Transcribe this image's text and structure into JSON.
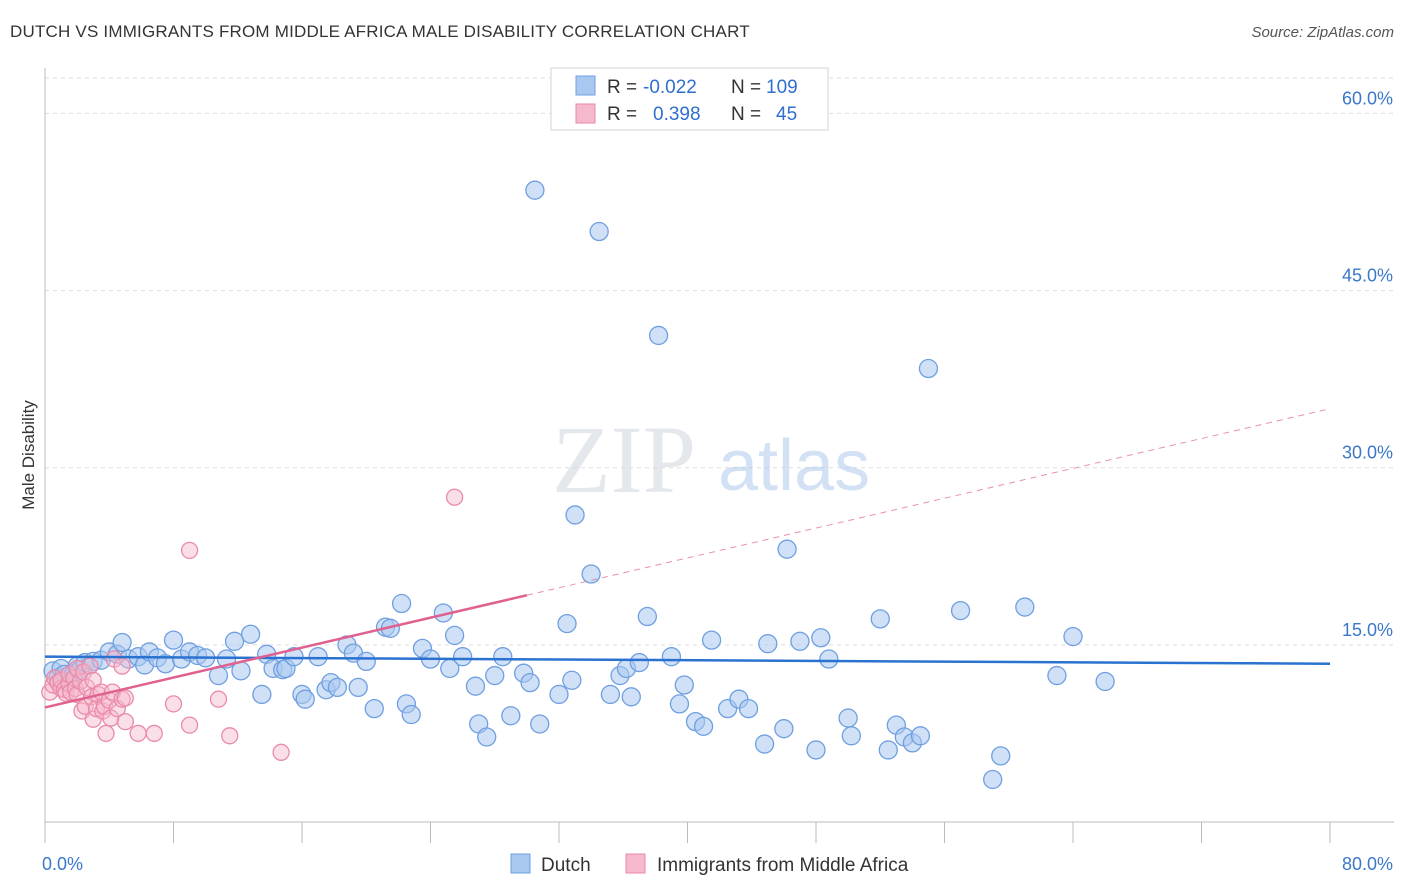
{
  "header": {
    "title": "DUTCH VS IMMIGRANTS FROM MIDDLE AFRICA MALE DISABILITY CORRELATION CHART",
    "source": "Source: ZipAtlas.com"
  },
  "watermark": {
    "zip": "ZIP",
    "atlas": "atlas"
  },
  "legend_box": {
    "rows": [
      {
        "r_label": "R =",
        "r_value": "-0.022",
        "n_label": "N =",
        "n_value": "109"
      },
      {
        "r_label": "R =",
        "r_value": "0.398",
        "n_label": "N =",
        "n_value": "45"
      }
    ]
  },
  "colors": {
    "blue_fill": "#a9c8f0",
    "blue_stroke": "#6f9fe0",
    "blue_line": "#2a72d0",
    "pink_fill": "#f6b8cc",
    "pink_stroke": "#e98aa8",
    "pink_line": "#e0618f",
    "tick_text": "#3b78c9",
    "grid": "#dddddd"
  },
  "chart_data": {
    "type": "scatter",
    "title": "DUTCH VS IMMIGRANTS FROM MIDDLE AFRICA MALE DISABILITY CORRELATION CHART",
    "xlabel": "",
    "ylabel": "Male Disability",
    "xlim": [
      0,
      80
    ],
    "ylim": [
      0,
      63
    ],
    "x_tick_labels": [
      "0.0%",
      "80.0%"
    ],
    "y_ticks": [
      15,
      30,
      45,
      60
    ],
    "y_tick_labels": [
      "15.0%",
      "30.0%",
      "45.0%",
      "60.0%"
    ],
    "grid": true,
    "legend_position": "top-center",
    "series": [
      {
        "name": "Dutch",
        "color": "#a9c8f0",
        "R": -0.022,
        "N": 109,
        "trend": {
          "x0": 0,
          "y0": 14.0,
          "x1": 80,
          "y1": 13.4
        },
        "points": [
          [
            0.5,
            12.8
          ],
          [
            0.8,
            12.2
          ],
          [
            1.0,
            13.0
          ],
          [
            1.2,
            12.5
          ],
          [
            1.5,
            11.8
          ],
          [
            1.8,
            12.6
          ],
          [
            2.0,
            13.2
          ],
          [
            2.2,
            12.9
          ],
          [
            2.5,
            13.5
          ],
          [
            3.0,
            13.6
          ],
          [
            3.5,
            13.7
          ],
          [
            4.0,
            14.4
          ],
          [
            4.5,
            14.2
          ],
          [
            4.8,
            15.2
          ],
          [
            5.2,
            13.8
          ],
          [
            5.8,
            14.0
          ],
          [
            6.2,
            13.3
          ],
          [
            6.5,
            14.4
          ],
          [
            7.0,
            13.9
          ],
          [
            7.5,
            13.4
          ],
          [
            8.0,
            15.4
          ],
          [
            8.5,
            13.8
          ],
          [
            9.0,
            14.4
          ],
          [
            9.5,
            14.1
          ],
          [
            10.0,
            13.9
          ],
          [
            10.8,
            12.4
          ],
          [
            11.3,
            13.8
          ],
          [
            11.8,
            15.3
          ],
          [
            12.2,
            12.8
          ],
          [
            12.8,
            15.9
          ],
          [
            13.5,
            10.8
          ],
          [
            13.8,
            14.2
          ],
          [
            14.2,
            13.0
          ],
          [
            14.8,
            12.9
          ],
          [
            15.0,
            13.0
          ],
          [
            15.5,
            14.0
          ],
          [
            16.0,
            10.8
          ],
          [
            16.2,
            10.4
          ],
          [
            17.0,
            14.0
          ],
          [
            17.5,
            11.2
          ],
          [
            17.8,
            11.8
          ],
          [
            18.2,
            11.4
          ],
          [
            18.8,
            15.0
          ],
          [
            19.2,
            14.3
          ],
          [
            19.5,
            11.4
          ],
          [
            20.0,
            13.6
          ],
          [
            20.5,
            9.6
          ],
          [
            21.2,
            16.5
          ],
          [
            21.5,
            16.4
          ],
          [
            22.2,
            18.5
          ],
          [
            22.5,
            10.0
          ],
          [
            22.8,
            9.1
          ],
          [
            23.5,
            14.7
          ],
          [
            24.0,
            13.8
          ],
          [
            24.8,
            17.7
          ],
          [
            25.2,
            13.0
          ],
          [
            25.5,
            15.8
          ],
          [
            26.0,
            14.0
          ],
          [
            26.8,
            11.5
          ],
          [
            27.0,
            8.3
          ],
          [
            27.5,
            7.2
          ],
          [
            28.0,
            12.4
          ],
          [
            28.5,
            14.0
          ],
          [
            29.0,
            9.0
          ],
          [
            29.8,
            12.6
          ],
          [
            30.2,
            11.8
          ],
          [
            30.8,
            8.3
          ],
          [
            30.5,
            53.5
          ],
          [
            32.0,
            10.8
          ],
          [
            32.5,
            16.8
          ],
          [
            32.8,
            12.0
          ],
          [
            33.0,
            26.0
          ],
          [
            34.0,
            21.0
          ],
          [
            34.5,
            50.0
          ],
          [
            35.2,
            10.8
          ],
          [
            35.8,
            12.4
          ],
          [
            36.2,
            13.0
          ],
          [
            36.5,
            10.6
          ],
          [
            37.0,
            13.5
          ],
          [
            37.5,
            17.4
          ],
          [
            38.2,
            41.2
          ],
          [
            39.0,
            14.0
          ],
          [
            39.5,
            10.0
          ],
          [
            39.8,
            11.6
          ],
          [
            40.5,
            8.5
          ],
          [
            41.0,
            8.1
          ],
          [
            41.5,
            15.4
          ],
          [
            42.5,
            9.6
          ],
          [
            43.2,
            10.4
          ],
          [
            43.8,
            9.6
          ],
          [
            44.8,
            6.6
          ],
          [
            45.0,
            15.1
          ],
          [
            46.0,
            7.9
          ],
          [
            46.2,
            23.1
          ],
          [
            47.0,
            15.3
          ],
          [
            48.0,
            6.1
          ],
          [
            48.3,
            15.6
          ],
          [
            48.8,
            13.8
          ],
          [
            50.0,
            8.8
          ],
          [
            50.2,
            7.3
          ],
          [
            52.0,
            17.2
          ],
          [
            52.5,
            6.1
          ],
          [
            53.0,
            8.2
          ],
          [
            53.5,
            7.2
          ],
          [
            54.0,
            6.7
          ],
          [
            54.5,
            7.3
          ],
          [
            55.0,
            38.4
          ],
          [
            57.0,
            17.9
          ],
          [
            59.0,
            3.6
          ],
          [
            59.5,
            5.6
          ],
          [
            61.0,
            18.2
          ],
          [
            63.0,
            12.4
          ],
          [
            64.0,
            15.7
          ],
          [
            66.0,
            11.9
          ]
        ]
      },
      {
        "name": "Immigrants from Middle Africa",
        "color": "#f6b8cc",
        "R": 0.398,
        "N": 45,
        "trend": {
          "x0": 0,
          "y0": 9.7,
          "x1": 30,
          "y1": 19.2
        },
        "trend_dashed": {
          "x0": 30,
          "y0": 19.2,
          "x1": 80,
          "y1": 35.0
        },
        "points": [
          [
            0.3,
            11.0
          ],
          [
            0.5,
            11.6
          ],
          [
            0.6,
            12.2
          ],
          [
            0.8,
            11.8
          ],
          [
            1.0,
            11.3
          ],
          [
            1.0,
            12.0
          ],
          [
            1.2,
            11.2
          ],
          [
            1.3,
            10.9
          ],
          [
            1.5,
            11.7
          ],
          [
            1.5,
            12.5
          ],
          [
            1.6,
            11.0
          ],
          [
            1.8,
            12.2
          ],
          [
            1.9,
            11.3
          ],
          [
            2.0,
            13.0
          ],
          [
            2.0,
            10.8
          ],
          [
            2.2,
            11.9
          ],
          [
            2.3,
            9.4
          ],
          [
            2.4,
            12.7
          ],
          [
            2.5,
            9.8
          ],
          [
            2.6,
            11.4
          ],
          [
            2.8,
            13.2
          ],
          [
            2.9,
            10.6
          ],
          [
            3.0,
            8.7
          ],
          [
            3.0,
            12.0
          ],
          [
            3.2,
            9.6
          ],
          [
            3.3,
            10.8
          ],
          [
            3.5,
            11.0
          ],
          [
            3.6,
            9.4
          ],
          [
            3.7,
            9.8
          ],
          [
            3.8,
            7.5
          ],
          [
            4.0,
            10.3
          ],
          [
            4.1,
            8.8
          ],
          [
            4.2,
            11.0
          ],
          [
            4.3,
            13.8
          ],
          [
            4.5,
            9.6
          ],
          [
            4.8,
            10.4
          ],
          [
            4.8,
            13.2
          ],
          [
            5.0,
            8.5
          ],
          [
            5.0,
            10.5
          ],
          [
            5.8,
            7.5
          ],
          [
            6.8,
            7.5
          ],
          [
            8.0,
            10.0
          ],
          [
            9.0,
            23.0
          ],
          [
            9.0,
            8.2
          ],
          [
            10.8,
            10.4
          ],
          [
            11.5,
            7.3
          ],
          [
            14.7,
            5.9
          ],
          [
            25.5,
            27.5
          ]
        ]
      }
    ]
  },
  "bottom_legend": {
    "items": [
      {
        "label": "Dutch"
      },
      {
        "label": "Immigrants from Middle Africa"
      }
    ]
  }
}
